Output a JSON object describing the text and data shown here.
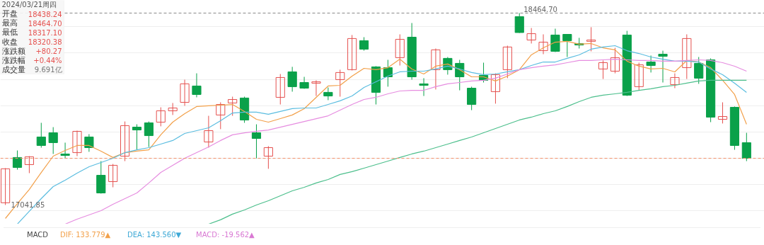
{
  "chart_data": {
    "type": "candlestick",
    "categories": [
      null,
      null,
      null,
      null,
      null,
      null,
      null,
      null,
      null,
      null,
      null,
      null,
      null,
      null,
      null,
      null,
      null,
      null,
      null,
      null,
      null,
      null,
      null,
      null,
      null,
      null,
      null,
      null,
      null,
      null,
      null,
      null,
      null,
      null,
      null,
      null,
      null,
      null,
      null,
      null,
      null,
      null,
      null,
      null,
      null,
      null,
      null,
      null,
      null,
      null,
      null,
      null,
      null,
      null,
      null,
      null,
      null,
      null,
      null,
      null,
      null,
      null,
      null
    ],
    "ohlc": [
      [
        17058,
        17315,
        17041.85,
        17310
      ],
      [
        17394,
        17446,
        17304,
        17320
      ],
      [
        17341,
        17404,
        17278,
        17399
      ],
      [
        17546,
        17651,
        17467,
        17483
      ],
      [
        17577,
        17619,
        17420,
        17504
      ],
      [
        17420,
        17504,
        17388,
        17409
      ],
      [
        17430,
        17593,
        17404,
        17588
      ],
      [
        17546,
        17567,
        17436,
        17467
      ],
      [
        17262,
        17367,
        17126,
        17131
      ],
      [
        17215,
        17346,
        17173,
        17336
      ],
      [
        17404,
        17661,
        17367,
        17630
      ],
      [
        17619,
        17640,
        17451,
        17598
      ],
      [
        17651,
        17661,
        17472,
        17556
      ],
      [
        17656,
        17766,
        17625,
        17740
      ],
      [
        17740,
        17798,
        17709,
        17761
      ],
      [
        17803,
        17971,
        17777,
        17940
      ],
      [
        17924,
        18018,
        17840,
        17861
      ],
      [
        17509,
        17703,
        17467,
        17593
      ],
      [
        17709,
        17803,
        17604,
        17787
      ],
      [
        17798,
        17845,
        17703,
        17824
      ],
      [
        17835,
        17845,
        17651,
        17672
      ],
      [
        17577,
        17640,
        17388,
        17535
      ],
      [
        17404,
        17478,
        17310,
        17467
      ],
      [
        17840,
        18013,
        17787,
        17987
      ],
      [
        18029,
        18066,
        17882,
        17919
      ],
      [
        17950,
        17992,
        17903,
        17908
      ],
      [
        17945,
        17966,
        17850,
        17955
      ],
      [
        17877,
        17913,
        17819,
        17850
      ],
      [
        17971,
        18045,
        17845,
        18024
      ],
      [
        18045,
        18302,
        18039,
        18276
      ],
      [
        18260,
        18286,
        18186,
        18197
      ],
      [
        18066,
        18071,
        17787,
        17877
      ],
      [
        18060,
        18118,
        17919,
        17992
      ],
      [
        18134,
        18307,
        18076,
        18270
      ],
      [
        18286,
        18391,
        17971,
        17992
      ],
      [
        17940,
        17982,
        17850,
        17929
      ],
      [
        18045,
        18202,
        17898,
        18192
      ],
      [
        18129,
        18139,
        18008,
        18045
      ],
      [
        18092,
        18118,
        17892,
        17992
      ],
      [
        17908,
        17919,
        17745,
        17787
      ],
      [
        18003,
        18097,
        17950,
        17966
      ],
      [
        17882,
        18018,
        17793,
        18008
      ],
      [
        18045,
        18223,
        17982,
        18213
      ],
      [
        18438.24,
        18464.7,
        18317.1,
        18320.38
      ],
      [
        18265,
        18354,
        18239,
        18312
      ],
      [
        18186,
        18307,
        18160,
        18249
      ],
      [
        18302,
        18349,
        18176,
        18181
      ],
      [
        18307,
        18307,
        18139,
        18260
      ],
      [
        18239,
        18281,
        18202,
        18228
      ],
      [
        18255,
        18360,
        18181,
        18265
      ],
      [
        18050,
        18113,
        17976,
        18097
      ],
      [
        18034,
        18207,
        18018,
        18134
      ],
      [
        18302,
        18333,
        17850,
        17856
      ],
      [
        17919,
        18097,
        17892,
        18081
      ],
      [
        18102,
        18150,
        18024,
        18076
      ],
      [
        18160,
        18186,
        17950,
        18144
      ],
      [
        17934,
        18018,
        17908,
        17987
      ],
      [
        18060,
        18307,
        17976,
        18276
      ],
      [
        18092,
        18139,
        17940,
        17982
      ],
      [
        18118,
        18129,
        17656,
        17693
      ],
      [
        17677,
        17803,
        17646,
        17698
      ],
      [
        17766,
        17772,
        17451,
        17483
      ],
      [
        17504,
        17577,
        17367,
        17388
      ]
    ],
    "colors": [
      "#e5514f",
      "#0aa14a",
      "#e5514f",
      "#0aa14a",
      "#0aa14a",
      "#0aa14a",
      "#e5514f",
      "#0aa14a",
      "#0aa14a",
      "#e5514f",
      "#e5514f",
      "#0aa14a",
      "#0aa14a",
      "#e5514f",
      "#e5514f",
      "#e5514f",
      "#0aa14a",
      "#e5514f",
      "#e5514f",
      "#e5514f",
      "#0aa14a",
      "#0aa14a",
      "#e5514f",
      "#e5514f",
      "#0aa14a",
      "#0aa14a",
      "#e5514f",
      "#0aa14a",
      "#e5514f",
      "#e5514f",
      "#0aa14a",
      "#0aa14a",
      "#0aa14a",
      "#e5514f",
      "#0aa14a",
      "#0aa14a",
      "#e5514f",
      "#0aa14a",
      "#0aa14a",
      "#0aa14a",
      "#0aa14a",
      "#e5514f",
      "#e5514f",
      "#0aa14a",
      "#e5514f",
      "#e5514f",
      "#0aa14a",
      "#0aa14a",
      "#0aa14a",
      "#e5514f",
      "#e5514f",
      "#e5514f",
      "#0aa14a",
      "#e5514f",
      "#0aa14a",
      "#0aa14a",
      "#e5514f",
      "#e5514f",
      "#0aa14a",
      "#0aa14a",
      "#e5514f",
      "#0aa14a",
      "#0aa14a"
    ],
    "series": [
      {
        "type": "line",
        "color": "#f2a04a",
        "values": [
          16942,
          17052,
          17157,
          17283,
          17404,
          17446,
          17483,
          17483,
          17441,
          17394,
          17430,
          17441,
          17451,
          17562,
          17656,
          17719,
          17772,
          17777,
          17782,
          17787,
          17735,
          17677,
          17656,
          17682,
          17709,
          17756,
          17840,
          17924,
          17929,
          17997,
          18055,
          18045,
          18060,
          18123,
          18050,
          18013,
          18071,
          18087,
          18045,
          17992,
          17992,
          17961,
          17997,
          18045,
          18155,
          18207,
          18249,
          18255,
          18234,
          18239,
          18207,
          18192,
          18108,
          18071,
          18050,
          18055,
          18029,
          18113,
          18102,
          18060,
          17966,
          17861,
          17640
        ]
      },
      {
        "type": "line",
        "color": "#5bbde0",
        "values": [
          null,
          16900,
          16995,
          17089,
          17178,
          17226,
          17278,
          17325,
          17357,
          17388,
          17430,
          17451,
          17467,
          17493,
          17520,
          17572,
          17593,
          17614,
          17667,
          17724,
          17730,
          17730,
          17714,
          17735,
          17756,
          17761,
          17761,
          17787,
          17814,
          17850,
          17913,
          17955,
          17997,
          18029,
          18034,
          18034,
          18050,
          18071,
          18050,
          18024,
          18008,
          18013,
          18029,
          18045,
          18076,
          18102,
          18102,
          18129,
          18155,
          18197,
          18213,
          18223,
          18186,
          18165,
          18139,
          18123,
          18108,
          18108,
          18102,
          18050,
          18008,
          17945,
          17877
        ]
      },
      {
        "type": "line",
        "color": "#e68de0",
        "values": [
          null,
          null,
          null,
          null,
          null,
          16900,
          16937,
          16968,
          17000,
          17047,
          17089,
          17131,
          17205,
          17283,
          17336,
          17388,
          17430,
          17472,
          17520,
          17562,
          17577,
          17588,
          17598,
          17619,
          17640,
          17661,
          17682,
          17703,
          17745,
          17787,
          17824,
          17840,
          17866,
          17887,
          17892,
          17892,
          17919,
          17940,
          17950,
          17961,
          17966,
          17982,
          18013,
          18045,
          18060,
          18071,
          18081,
          18097,
          18113,
          18113,
          18118,
          18123,
          18118,
          18113,
          18113,
          18108,
          18108,
          18113,
          18118,
          18113,
          18097,
          18071,
          18034
        ]
      },
      {
        "type": "line",
        "color": "#4cbf8c",
        "values": [
          null,
          null,
          null,
          null,
          null,
          null,
          null,
          null,
          null,
          null,
          null,
          null,
          null,
          null,
          null,
          null,
          null,
          16900,
          16932,
          16974,
          17005,
          17042,
          17073,
          17110,
          17147,
          17173,
          17205,
          17231,
          17268,
          17289,
          17315,
          17341,
          17367,
          17394,
          17420,
          17441,
          17467,
          17493,
          17520,
          17546,
          17577,
          17609,
          17640,
          17672,
          17693,
          17719,
          17740,
          17772,
          17808,
          17840,
          17856,
          17866,
          17877,
          17892,
          17903,
          17919,
          17929,
          17945,
          17961,
          17966,
          17966,
          17966,
          17966
        ]
      }
    ],
    "ylim": [
      16900,
      18559
    ],
    "yticks": [
      {
        "value": 16998,
        "label": null
      },
      {
        "value": 17193,
        "label": null
      },
      {
        "value": 17388,
        "label": null
      },
      {
        "value": 17583,
        "label": null
      },
      {
        "value": 17778,
        "label": null
      },
      {
        "value": 17973,
        "label": null
      },
      {
        "value": 18168,
        "label": null
      },
      {
        "value": 18363,
        "label": null
      }
    ],
    "grid": "y",
    "tick_labels": false,
    "ref_lines": [
      {
        "axis": "y",
        "value": 18464.7,
        "color": "#888888",
        "line_style": "dashed"
      },
      {
        "axis": "y",
        "value": 17388,
        "color": "#f0906a",
        "line_style": "dashed"
      }
    ],
    "annotations": [
      "2024/03/21周四",
      "开盘",
      "18438.24",
      "最高",
      "18464.70",
      "最低",
      "18317.10",
      "收盘",
      "18320.38",
      "涨跌额",
      "+80.27",
      "涨跌幅",
      "+0.44%",
      "成交量",
      "9.691亿",
      {
        "text": "18464.70",
        "y": 18464.7
      },
      "17041.85",
      "MACD",
      "DIF: 133.779▲",
      "DEA: 143.560▼",
      "MACD: -19.562▲"
    ]
  }
}
